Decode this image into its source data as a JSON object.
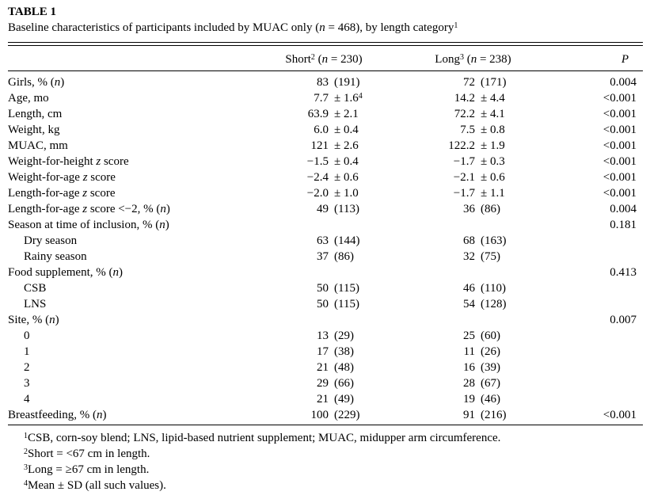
{
  "table": {
    "title": "TABLE 1",
    "caption": [
      {
        "t": "Baseline characteristics of participants included by MUAC only ("
      },
      {
        "t": "n",
        "i": true
      },
      {
        "t": " = 468), by length category"
      },
      {
        "t": "1",
        "sup": true
      }
    ],
    "columns": {
      "short": [
        {
          "t": "Short"
        },
        {
          "t": "2",
          "sup": true
        },
        {
          "t": " ("
        },
        {
          "t": "n",
          "i": true
        },
        {
          "t": " = 230)"
        }
      ],
      "long": [
        {
          "t": "Long"
        },
        {
          "t": "3",
          "sup": true
        },
        {
          "t": " ("
        },
        {
          "t": "n",
          "i": true
        },
        {
          "t": " = 238)"
        }
      ],
      "p": [
        {
          "t": "P",
          "i": true
        }
      ]
    },
    "rows": [
      {
        "label": [
          {
            "t": "Girls, % ("
          },
          {
            "t": "n",
            "i": true
          },
          {
            "t": ")"
          }
        ],
        "indent": false,
        "short": {
          "a": "83",
          "b": "(191)",
          "sup": ""
        },
        "long": {
          "a": "72",
          "b": "(171)"
        },
        "p": "0.004"
      },
      {
        "label": [
          {
            "t": "Age, mo"
          }
        ],
        "indent": false,
        "short": {
          "a": "7.7",
          "b": "± 1.6",
          "sup": "4"
        },
        "long": {
          "a": "14.2",
          "b": "± 4.4"
        },
        "p": "<0.001"
      },
      {
        "label": [
          {
            "t": "Length, cm"
          }
        ],
        "indent": false,
        "short": {
          "a": "63.9",
          "b": "± 2.1",
          "sup": ""
        },
        "long": {
          "a": "72.2",
          "b": "± 4.1"
        },
        "p": "<0.001"
      },
      {
        "label": [
          {
            "t": "Weight, kg"
          }
        ],
        "indent": false,
        "short": {
          "a": "6.0",
          "b": "± 0.4",
          "sup": ""
        },
        "long": {
          "a": "7.5",
          "b": "± 0.8"
        },
        "p": "<0.001"
      },
      {
        "label": [
          {
            "t": "MUAC, mm"
          }
        ],
        "indent": false,
        "short": {
          "a": "121",
          "b": "± 2.6",
          "sup": ""
        },
        "long": {
          "a": "122.2",
          "b": "± 1.9"
        },
        "p": "<0.001"
      },
      {
        "label": [
          {
            "t": "Weight-for-height "
          },
          {
            "t": "z",
            "i": true
          },
          {
            "t": " score"
          }
        ],
        "indent": false,
        "short": {
          "a": "−1.5",
          "b": "± 0.4",
          "sup": ""
        },
        "long": {
          "a": "−1.7",
          "b": "± 0.3"
        },
        "p": "<0.001"
      },
      {
        "label": [
          {
            "t": "Weight-for-age "
          },
          {
            "t": "z",
            "i": true
          },
          {
            "t": " score"
          }
        ],
        "indent": false,
        "short": {
          "a": "−2.4",
          "b": "± 0.6",
          "sup": ""
        },
        "long": {
          "a": "−2.1",
          "b": "± 0.6"
        },
        "p": "<0.001"
      },
      {
        "label": [
          {
            "t": "Length-for-age "
          },
          {
            "t": "z",
            "i": true
          },
          {
            "t": " score"
          }
        ],
        "indent": false,
        "short": {
          "a": "−2.0",
          "b": "± 1.0",
          "sup": ""
        },
        "long": {
          "a": "−1.7",
          "b": "± 1.1"
        },
        "p": "<0.001"
      },
      {
        "label": [
          {
            "t": "Length-for-age "
          },
          {
            "t": "z",
            "i": true
          },
          {
            "t": " score <−2, % ("
          },
          {
            "t": "n",
            "i": true
          },
          {
            "t": ")"
          }
        ],
        "indent": false,
        "short": {
          "a": "49",
          "b": "(113)",
          "sup": ""
        },
        "long": {
          "a": "36",
          "b": "(86)"
        },
        "p": "0.004"
      },
      {
        "label": [
          {
            "t": "Season at time of inclusion, % ("
          },
          {
            "t": "n",
            "i": true
          },
          {
            "t": ")"
          }
        ],
        "indent": false,
        "short": {
          "a": "",
          "b": "",
          "sup": ""
        },
        "long": {
          "a": "",
          "b": ""
        },
        "p": "0.181"
      },
      {
        "label": [
          {
            "t": "Dry season"
          }
        ],
        "indent": true,
        "short": {
          "a": "63",
          "b": "(144)",
          "sup": ""
        },
        "long": {
          "a": "68",
          "b": "(163)"
        },
        "p": ""
      },
      {
        "label": [
          {
            "t": "Rainy season"
          }
        ],
        "indent": true,
        "short": {
          "a": "37",
          "b": "(86)",
          "sup": ""
        },
        "long": {
          "a": "32",
          "b": "(75)"
        },
        "p": ""
      },
      {
        "label": [
          {
            "t": "Food supplement, % ("
          },
          {
            "t": "n",
            "i": true
          },
          {
            "t": ")"
          }
        ],
        "indent": false,
        "short": {
          "a": "",
          "b": "",
          "sup": ""
        },
        "long": {
          "a": "",
          "b": ""
        },
        "p": "0.413"
      },
      {
        "label": [
          {
            "t": "CSB"
          }
        ],
        "indent": true,
        "short": {
          "a": "50",
          "b": "(115)",
          "sup": ""
        },
        "long": {
          "a": "46",
          "b": "(110)"
        },
        "p": ""
      },
      {
        "label": [
          {
            "t": "LNS"
          }
        ],
        "indent": true,
        "short": {
          "a": "50",
          "b": "(115)",
          "sup": ""
        },
        "long": {
          "a": "54",
          "b": "(128)"
        },
        "p": ""
      },
      {
        "label": [
          {
            "t": "Site, % ("
          },
          {
            "t": "n",
            "i": true
          },
          {
            "t": ")"
          }
        ],
        "indent": false,
        "short": {
          "a": "",
          "b": "",
          "sup": ""
        },
        "long": {
          "a": "",
          "b": ""
        },
        "p": "0.007"
      },
      {
        "label": [
          {
            "t": "0"
          }
        ],
        "indent": true,
        "short": {
          "a": "13",
          "b": "(29)",
          "sup": ""
        },
        "long": {
          "a": "25",
          "b": "(60)"
        },
        "p": ""
      },
      {
        "label": [
          {
            "t": "1"
          }
        ],
        "indent": true,
        "short": {
          "a": "17",
          "b": "(38)",
          "sup": ""
        },
        "long": {
          "a": "11",
          "b": "(26)"
        },
        "p": ""
      },
      {
        "label": [
          {
            "t": "2"
          }
        ],
        "indent": true,
        "short": {
          "a": "21",
          "b": "(48)",
          "sup": ""
        },
        "long": {
          "a": "16",
          "b": "(39)"
        },
        "p": ""
      },
      {
        "label": [
          {
            "t": "3"
          }
        ],
        "indent": true,
        "short": {
          "a": "29",
          "b": "(66)",
          "sup": ""
        },
        "long": {
          "a": "28",
          "b": "(67)"
        },
        "p": ""
      },
      {
        "label": [
          {
            "t": "4"
          }
        ],
        "indent": true,
        "short": {
          "a": "21",
          "b": "(49)",
          "sup": ""
        },
        "long": {
          "a": "19",
          "b": "(46)"
        },
        "p": ""
      },
      {
        "label": [
          {
            "t": "Breastfeeding, % ("
          },
          {
            "t": "n",
            "i": true
          },
          {
            "t": ")"
          }
        ],
        "indent": false,
        "short": {
          "a": "100",
          "b": "(229)",
          "sup": ""
        },
        "long": {
          "a": "91",
          "b": "(216)"
        },
        "p": "<0.001"
      }
    ],
    "footnotes": [
      {
        "marker": "1",
        "text": "CSB, corn-soy blend; LNS, lipid-based nutrient supplement; MUAC, midupper arm circumference."
      },
      {
        "marker": "2",
        "text": "Short = <67 cm in length."
      },
      {
        "marker": "3",
        "text": "Long = ≥67 cm in length."
      },
      {
        "marker": "4",
        "text": "Mean ± SD (all such values)."
      }
    ],
    "colors": {
      "text": "#000000",
      "background": "#ffffff",
      "rule": "#000000"
    }
  }
}
